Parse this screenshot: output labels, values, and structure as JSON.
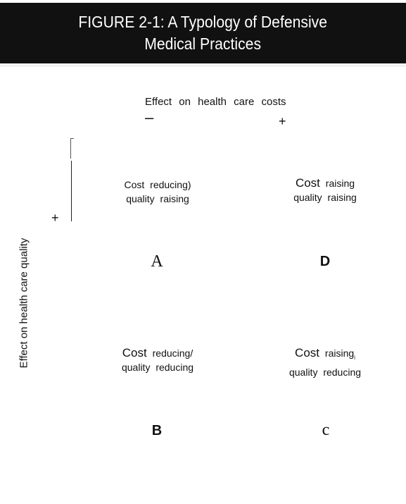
{
  "figure": {
    "title_line1": "FIGURE 2-1: A Typology of Defensive",
    "title_line2": "Medical Practices"
  },
  "axes": {
    "x_label": "Effect on health care costs",
    "x_minus": "–",
    "x_plus": "+",
    "y_label": "Effect on health care quality",
    "y_plus": "+"
  },
  "quadrants": {
    "A": {
      "line1_word1": "Cost",
      "line1_word2": "reducing)",
      "line2": "quality raising",
      "letter": "A"
    },
    "D": {
      "line1_word1": "Cost",
      "line1_word2": "raising",
      "line2": "quality raising",
      "letter": "D"
    },
    "B": {
      "line1_word1": "Cost",
      "line1_word2": "reducing/",
      "line2": "quality reducing",
      "letter": "B"
    },
    "C": {
      "line1_word1": "Cost",
      "line1_word2": "raising",
      "line1_sub": "i",
      "line2": "quality reducing",
      "letter": "c"
    }
  },
  "colors": {
    "title_background": "#111111",
    "title_text": "#ffffff",
    "text": "#111111",
    "background": "#ffffff"
  }
}
